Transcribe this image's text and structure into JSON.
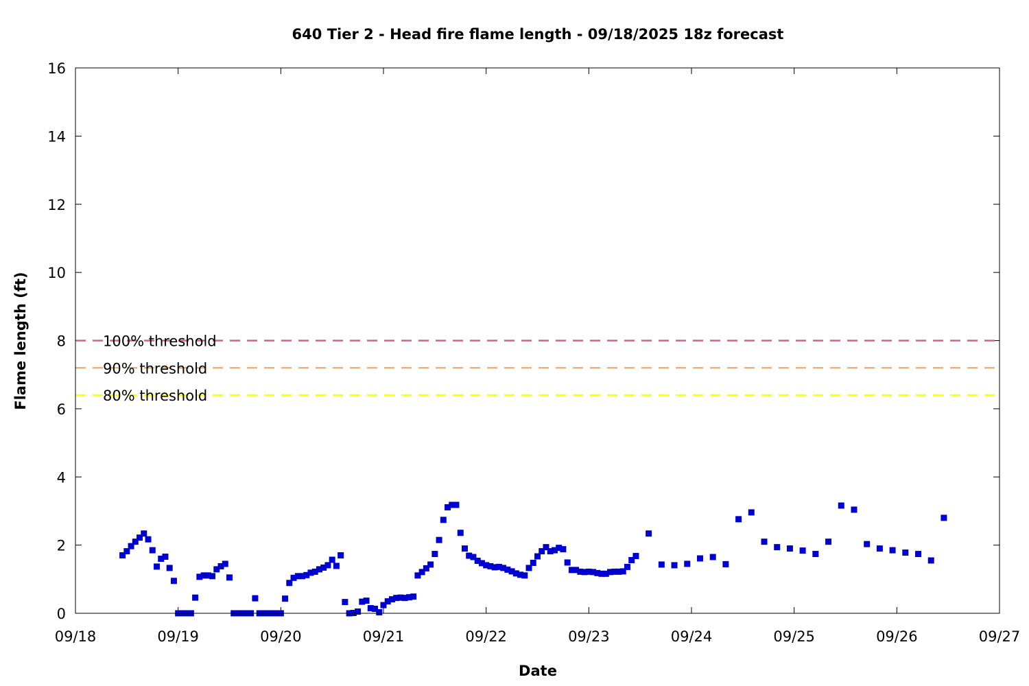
{
  "chart_data": {
    "type": "scatter",
    "title": "640 Tier 2 - Head fire flame length - 09/18/2025 18z forecast",
    "xlabel": "Date",
    "ylabel": "Flame length (ft)",
    "xlim": [
      "2025-09-18 00:00",
      "2025-09-27 00:00"
    ],
    "ylim": [
      0,
      16
    ],
    "x_ticks": [
      "09/18",
      "09/19",
      "09/20",
      "09/21",
      "09/22",
      "09/23",
      "09/24",
      "09/25",
      "09/26",
      "09/27"
    ],
    "y_ticks": [
      "0",
      "2",
      "4",
      "6",
      "8",
      "10",
      "12",
      "14",
      "16"
    ],
    "grid": false,
    "thresholds": [
      {
        "label": "100% threshold",
        "value": 8.0,
        "color": "#d9607e"
      },
      {
        "label": "90% threshold",
        "value": 7.2,
        "color": "#f0b072"
      },
      {
        "label": "80% threshold",
        "value": 6.4,
        "color": "#ffff00"
      }
    ],
    "series": [
      {
        "color": "#0000cc",
        "marker": "square",
        "points": [
          [
            "2025-09-18 11:00",
            1.7
          ],
          [
            "2025-09-18 12:00",
            1.82
          ],
          [
            "2025-09-18 13:00",
            1.97
          ],
          [
            "2025-09-18 14:00",
            2.1
          ],
          [
            "2025-09-18 15:00",
            2.22
          ],
          [
            "2025-09-18 16:00",
            2.34
          ],
          [
            "2025-09-18 17:00",
            2.17
          ],
          [
            "2025-09-18 18:00",
            1.85
          ],
          [
            "2025-09-18 19:00",
            1.37
          ],
          [
            "2025-09-18 20:00",
            1.6
          ],
          [
            "2025-09-18 21:00",
            1.66
          ],
          [
            "2025-09-18 22:00",
            1.33
          ],
          [
            "2025-09-18 23:00",
            0.95
          ],
          [
            "2025-09-19 00:00",
            0.0
          ],
          [
            "2025-09-19 01:00",
            0.0
          ],
          [
            "2025-09-19 02:00",
            0.0
          ],
          [
            "2025-09-19 03:00",
            0.0
          ],
          [
            "2025-09-19 04:00",
            0.46
          ],
          [
            "2025-09-19 05:00",
            1.07
          ],
          [
            "2025-09-19 06:00",
            1.11
          ],
          [
            "2025-09-19 07:00",
            1.11
          ],
          [
            "2025-09-19 08:00",
            1.09
          ],
          [
            "2025-09-19 09:00",
            1.29
          ],
          [
            "2025-09-19 10:00",
            1.38
          ],
          [
            "2025-09-19 11:00",
            1.45
          ],
          [
            "2025-09-19 12:00",
            1.05
          ],
          [
            "2025-09-19 13:00",
            0.0
          ],
          [
            "2025-09-19 14:00",
            0.0
          ],
          [
            "2025-09-19 15:00",
            0.0
          ],
          [
            "2025-09-19 16:00",
            0.0
          ],
          [
            "2025-09-19 17:00",
            0.0
          ],
          [
            "2025-09-19 18:00",
            0.44
          ],
          [
            "2025-09-19 19:00",
            0.0
          ],
          [
            "2025-09-19 20:00",
            0.0
          ],
          [
            "2025-09-19 21:00",
            0.0
          ],
          [
            "2025-09-19 22:00",
            0.0
          ],
          [
            "2025-09-19 23:00",
            0.0
          ],
          [
            "2025-09-20 00:00",
            0.0
          ],
          [
            "2025-09-20 01:00",
            0.43
          ],
          [
            "2025-09-20 02:00",
            0.89
          ],
          [
            "2025-09-20 03:00",
            1.04
          ],
          [
            "2025-09-20 04:00",
            1.09
          ],
          [
            "2025-09-20 05:00",
            1.09
          ],
          [
            "2025-09-20 06:00",
            1.12
          ],
          [
            "2025-09-20 07:00",
            1.19
          ],
          [
            "2025-09-20 08:00",
            1.22
          ],
          [
            "2025-09-20 09:00",
            1.29
          ],
          [
            "2025-09-20 10:00",
            1.34
          ],
          [
            "2025-09-20 11:00",
            1.41
          ],
          [
            "2025-09-20 12:00",
            1.57
          ],
          [
            "2025-09-20 13:00",
            1.39
          ],
          [
            "2025-09-20 14:00",
            1.7
          ],
          [
            "2025-09-20 15:00",
            0.33
          ],
          [
            "2025-09-20 16:00",
            0.0
          ],
          [
            "2025-09-20 17:00",
            0.01
          ],
          [
            "2025-09-20 18:00",
            0.05
          ],
          [
            "2025-09-20 19:00",
            0.34
          ],
          [
            "2025-09-20 20:00",
            0.37
          ],
          [
            "2025-09-20 21:00",
            0.15
          ],
          [
            "2025-09-20 22:00",
            0.13
          ],
          [
            "2025-09-20 23:00",
            0.03
          ],
          [
            "2025-09-21 00:00",
            0.24
          ],
          [
            "2025-09-21 01:00",
            0.35
          ],
          [
            "2025-09-21 02:00",
            0.41
          ],
          [
            "2025-09-21 03:00",
            0.45
          ],
          [
            "2025-09-21 04:00",
            0.46
          ],
          [
            "2025-09-21 05:00",
            0.45
          ],
          [
            "2025-09-21 06:00",
            0.47
          ],
          [
            "2025-09-21 07:00",
            0.49
          ],
          [
            "2025-09-21 08:00",
            1.11
          ],
          [
            "2025-09-21 09:00",
            1.21
          ],
          [
            "2025-09-21 10:00",
            1.32
          ],
          [
            "2025-09-21 11:00",
            1.43
          ],
          [
            "2025-09-21 12:00",
            1.74
          ],
          [
            "2025-09-21 13:00",
            2.15
          ],
          [
            "2025-09-21 14:00",
            2.74
          ],
          [
            "2025-09-21 15:00",
            3.11
          ],
          [
            "2025-09-21 16:00",
            3.18
          ],
          [
            "2025-09-21 17:00",
            3.18
          ],
          [
            "2025-09-21 18:00",
            2.36
          ],
          [
            "2025-09-21 19:00",
            1.9
          ],
          [
            "2025-09-21 20:00",
            1.69
          ],
          [
            "2025-09-21 21:00",
            1.65
          ],
          [
            "2025-09-21 22:00",
            1.54
          ],
          [
            "2025-09-21 23:00",
            1.47
          ],
          [
            "2025-09-22 00:00",
            1.41
          ],
          [
            "2025-09-22 01:00",
            1.38
          ],
          [
            "2025-09-22 02:00",
            1.35
          ],
          [
            "2025-09-22 03:00",
            1.36
          ],
          [
            "2025-09-22 04:00",
            1.33
          ],
          [
            "2025-09-22 05:00",
            1.28
          ],
          [
            "2025-09-22 06:00",
            1.23
          ],
          [
            "2025-09-22 07:00",
            1.17
          ],
          [
            "2025-09-22 08:00",
            1.13
          ],
          [
            "2025-09-22 09:00",
            1.11
          ],
          [
            "2025-09-22 10:00",
            1.33
          ],
          [
            "2025-09-22 11:00",
            1.48
          ],
          [
            "2025-09-22 12:00",
            1.67
          ],
          [
            "2025-09-22 13:00",
            1.82
          ],
          [
            "2025-09-22 14:00",
            1.94
          ],
          [
            "2025-09-22 15:00",
            1.82
          ],
          [
            "2025-09-22 16:00",
            1.85
          ],
          [
            "2025-09-22 17:00",
            1.92
          ],
          [
            "2025-09-22 18:00",
            1.88
          ],
          [
            "2025-09-22 19:00",
            1.49
          ],
          [
            "2025-09-22 20:00",
            1.27
          ],
          [
            "2025-09-22 21:00",
            1.27
          ],
          [
            "2025-09-22 22:00",
            1.22
          ],
          [
            "2025-09-22 23:00",
            1.21
          ],
          [
            "2025-09-23 00:00",
            1.22
          ],
          [
            "2025-09-23 01:00",
            1.21
          ],
          [
            "2025-09-23 02:00",
            1.18
          ],
          [
            "2025-09-23 03:00",
            1.16
          ],
          [
            "2025-09-23 04:00",
            1.16
          ],
          [
            "2025-09-23 05:00",
            1.21
          ],
          [
            "2025-09-23 06:00",
            1.22
          ],
          [
            "2025-09-23 07:00",
            1.22
          ],
          [
            "2025-09-23 08:00",
            1.23
          ],
          [
            "2025-09-23 09:00",
            1.36
          ],
          [
            "2025-09-23 10:00",
            1.56
          ],
          [
            "2025-09-23 11:00",
            1.68
          ],
          [
            "2025-09-23 14:00",
            2.34
          ],
          [
            "2025-09-23 17:00",
            1.43
          ],
          [
            "2025-09-23 20:00",
            1.41
          ],
          [
            "2025-09-23 23:00",
            1.45
          ],
          [
            "2025-09-24 02:00",
            1.61
          ],
          [
            "2025-09-24 05:00",
            1.65
          ],
          [
            "2025-09-24 08:00",
            1.44
          ],
          [
            "2025-09-24 11:00",
            2.76
          ],
          [
            "2025-09-24 14:00",
            2.96
          ],
          [
            "2025-09-24 17:00",
            2.1
          ],
          [
            "2025-09-24 20:00",
            1.94
          ],
          [
            "2025-09-24 23:00",
            1.9
          ],
          [
            "2025-09-25 02:00",
            1.84
          ],
          [
            "2025-09-25 05:00",
            1.74
          ],
          [
            "2025-09-25 08:00",
            2.1
          ],
          [
            "2025-09-25 11:00",
            3.16
          ],
          [
            "2025-09-25 14:00",
            3.04
          ],
          [
            "2025-09-25 17:00",
            2.03
          ],
          [
            "2025-09-25 20:00",
            1.9
          ],
          [
            "2025-09-25 23:00",
            1.85
          ],
          [
            "2025-09-26 02:00",
            1.78
          ],
          [
            "2025-09-26 05:00",
            1.74
          ],
          [
            "2025-09-26 08:00",
            1.55
          ],
          [
            "2025-09-26 11:00",
            2.8
          ]
        ]
      }
    ]
  }
}
